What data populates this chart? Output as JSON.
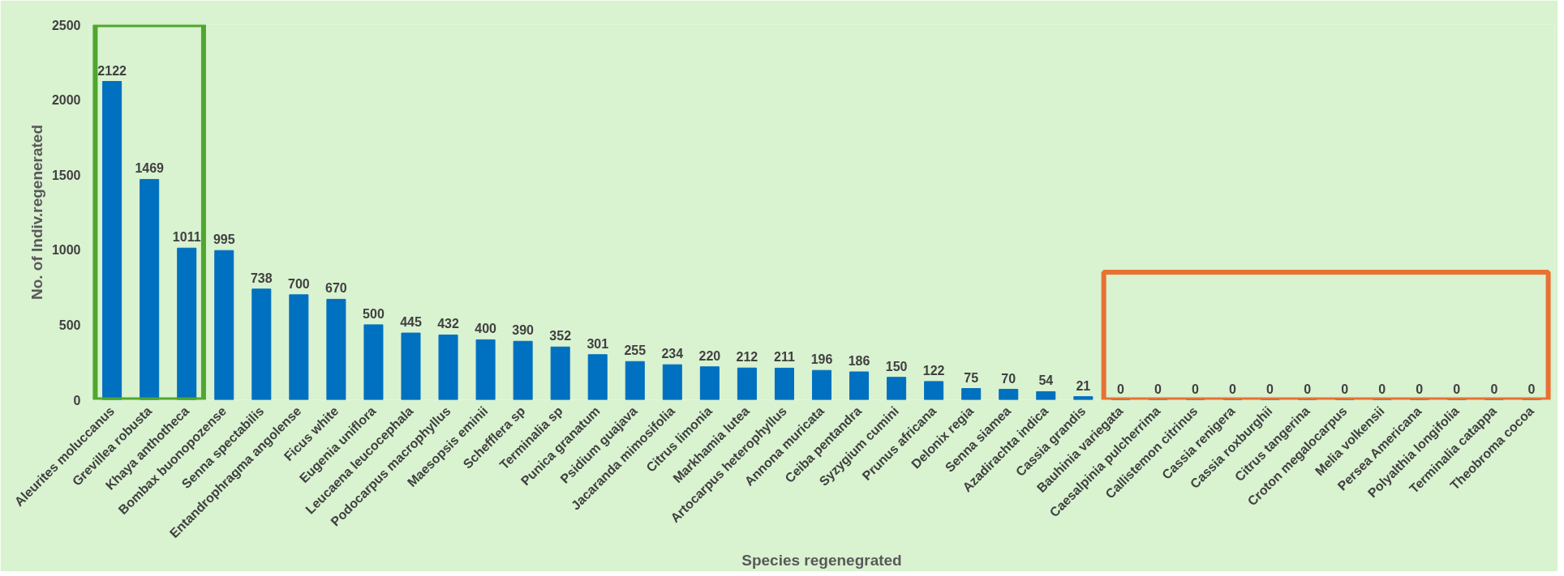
{
  "chart_data": {
    "type": "bar",
    "xlabel": "Species regenegrated",
    "ylabel": "No. of Indiv.regenerated",
    "categories": [
      "Aleurites moluccanus",
      "Grevillea robusta",
      "Khaya anthotheca",
      "Bombax buonopozense",
      "Senna spectabilis",
      "Entandrophragma angolense",
      "Ficus white",
      "Eugenia uniflora",
      "Leucaena leucocephala",
      "Podocarpus macrophyllus",
      "Maesopsis eminii",
      "Schefflera sp",
      "Terminalia sp",
      "Punica granatum",
      "Psidium guajava",
      "Jacaranda mimosifolia",
      "Citrus limonia",
      "Markhamia lutea",
      "Artocarpus heterophyllus",
      "Annona muricata",
      "Ceiba pentandra",
      "Syzygium cumini",
      "Prunus africana",
      "Delonix regia",
      "Senna siamea",
      "Azadirachta indica",
      "Cassia grandis",
      "Bauhinia variegata",
      "Caesalpinia pulcherrima",
      "Callistemon citrinus",
      "Cassia renigera",
      "Cassia roxburghii",
      "Citrus tangerina",
      "Croton megalocarpus",
      "Melia volkensii",
      "Persea Americana",
      "Polyalthia longifolia",
      "Terminalia catappa",
      "Theobroma cocoa"
    ],
    "values": [
      2122,
      1469,
      1011,
      995,
      738,
      700,
      670,
      500,
      445,
      432,
      400,
      390,
      352,
      301,
      255,
      234,
      220,
      212,
      211,
      196,
      186,
      150,
      122,
      75,
      70,
      54,
      21,
      0,
      0,
      0,
      0,
      0,
      0,
      0,
      0,
      0,
      0,
      0,
      0
    ],
    "color": "#0070c0",
    "ylim": [
      0,
      2500
    ],
    "yticks": [
      0,
      500,
      1000,
      1500,
      2000,
      2500
    ],
    "grid": false,
    "data_labels": true
  }
}
